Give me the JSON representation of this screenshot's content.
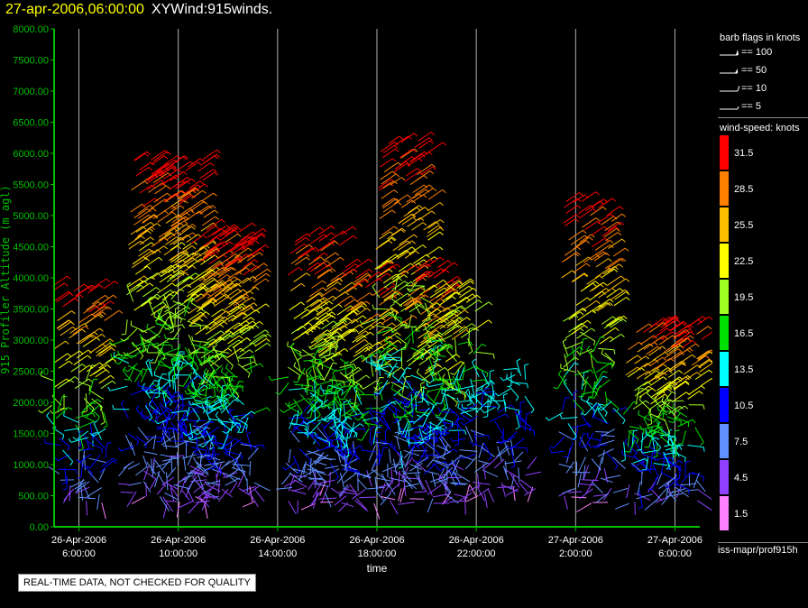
{
  "header": {
    "date_label": "27-apr-2006,06:00:00",
    "product_label": "XYWind:915winds."
  },
  "chart_data": {
    "type": "scatter",
    "title": "27-apr-2006,06:00:00  XYWind:915winds.",
    "xlabel": "time",
    "ylabel": "915 Profiler Altitude (m agl)",
    "xlim": [
      "2006-04-26T05:00:00",
      "2006-04-27T07:00:00"
    ],
    "ylim": [
      0,
      8000
    ],
    "y_ticks": [
      "0.00",
      "500.00",
      "1000.00",
      "1500.00",
      "2000.00",
      "2500.00",
      "3000.00",
      "3500.00",
      "4000.00",
      "4500.00",
      "5000.00",
      "5500.00",
      "6000.00",
      "6500.00",
      "7000.00",
      "7500.00",
      "8000.00"
    ],
    "x_ticks": [
      {
        "t": "2006-04-26T06:00:00",
        "line1": "26-Apr-2006",
        "line2": "6:00:00"
      },
      {
        "t": "2006-04-26T10:00:00",
        "line1": "26-Apr-2006",
        "line2": "10:00:00"
      },
      {
        "t": "2006-04-26T14:00:00",
        "line1": "26-Apr-2006",
        "line2": "14:00:00"
      },
      {
        "t": "2006-04-26T18:00:00",
        "line1": "26-Apr-2006",
        "line2": "18:00:00"
      },
      {
        "t": "2006-04-26T22:00:00",
        "line1": "26-Apr-2006",
        "line2": "22:00:00"
      },
      {
        "t": "2006-04-27T02:00:00",
        "line1": "27-Apr-2006",
        "line2": "2:00:00"
      },
      {
        "t": "2006-04-27T06:00:00",
        "line1": "27-Apr-2006",
        "line2": "6:00:00"
      }
    ],
    "grid": "vertical",
    "series": [
      {
        "time": "2006-04-26T06:00:00",
        "top_altitude": 3900,
        "max_speed": 31.5
      },
      {
        "time": "2006-04-26T09:00:00",
        "top_altitude": 5900,
        "max_speed": 31.5
      },
      {
        "time": "2006-04-26T10:00:00",
        "top_altitude": 5900,
        "max_speed": 31.5
      },
      {
        "time": "2006-04-26T11:30:00",
        "top_altitude": 4800,
        "max_speed": 31.5
      },
      {
        "time": "2006-04-26T12:00:00",
        "top_altitude": 4700,
        "max_speed": 31.5
      },
      {
        "time": "2006-04-26T15:30:00",
        "top_altitude": 4700,
        "max_speed": 31.5
      },
      {
        "time": "2006-04-26T16:00:00",
        "top_altitude": 3500,
        "max_speed": 22.5
      },
      {
        "time": "2006-04-26T17:30:00",
        "top_altitude": 4200,
        "max_speed": 31.5
      },
      {
        "time": "2006-04-26T19:00:00",
        "top_altitude": 6200,
        "max_speed": 31.5
      },
      {
        "time": "2006-04-26T20:00:00",
        "top_altitude": 4200,
        "max_speed": 31.5
      },
      {
        "time": "2006-04-26T21:00:00",
        "top_altitude": 3900,
        "max_speed": 22.5
      },
      {
        "time": "2006-04-26T23:00:00",
        "top_altitude": 2500,
        "max_speed": 13.5
      },
      {
        "time": "2006-04-27T02:30:00",
        "top_altitude": 5200,
        "max_speed": 31.5
      },
      {
        "time": "2006-04-27T05:00:00",
        "top_altitude": 3300,
        "max_speed": 31.5
      },
      {
        "time": "2006-04-27T06:00:00",
        "top_altitude": 3300,
        "max_speed": 31.5
      }
    ]
  },
  "barb_legend": {
    "title": "barb flags in knots",
    "items": [
      {
        "label": "== 100"
      },
      {
        "label": "== 50"
      },
      {
        "label": "== 10"
      },
      {
        "label": "== 5"
      }
    ]
  },
  "speed_legend": {
    "title": "wind-speed: knots",
    "bins": [
      {
        "label": "31.5",
        "color": "#ff0000"
      },
      {
        "label": "28.5",
        "color": "#ff8000"
      },
      {
        "label": "25.5",
        "color": "#ffbf00"
      },
      {
        "label": "22.5",
        "color": "#ffff00"
      },
      {
        "label": "19.5",
        "color": "#a0ff20"
      },
      {
        "label": "16.5",
        "color": "#00e000"
      },
      {
        "label": "13.5",
        "color": "#00ffff"
      },
      {
        "label": "10.5",
        "color": "#0000ff"
      },
      {
        "label": "7.5",
        "color": "#6090ff"
      },
      {
        "label": "4.5",
        "color": "#9040ff"
      },
      {
        "label": "1.5",
        "color": "#ff80ff"
      }
    ]
  },
  "footer": {
    "source": "iss-mapr/prof915h",
    "quality_notice": "REAL-TIME DATA, NOT CHECKED FOR QUALITY"
  },
  "colors": {
    "axis": "#00c000",
    "grid": "#b0b0b0",
    "tick_text": "#ffffff"
  }
}
